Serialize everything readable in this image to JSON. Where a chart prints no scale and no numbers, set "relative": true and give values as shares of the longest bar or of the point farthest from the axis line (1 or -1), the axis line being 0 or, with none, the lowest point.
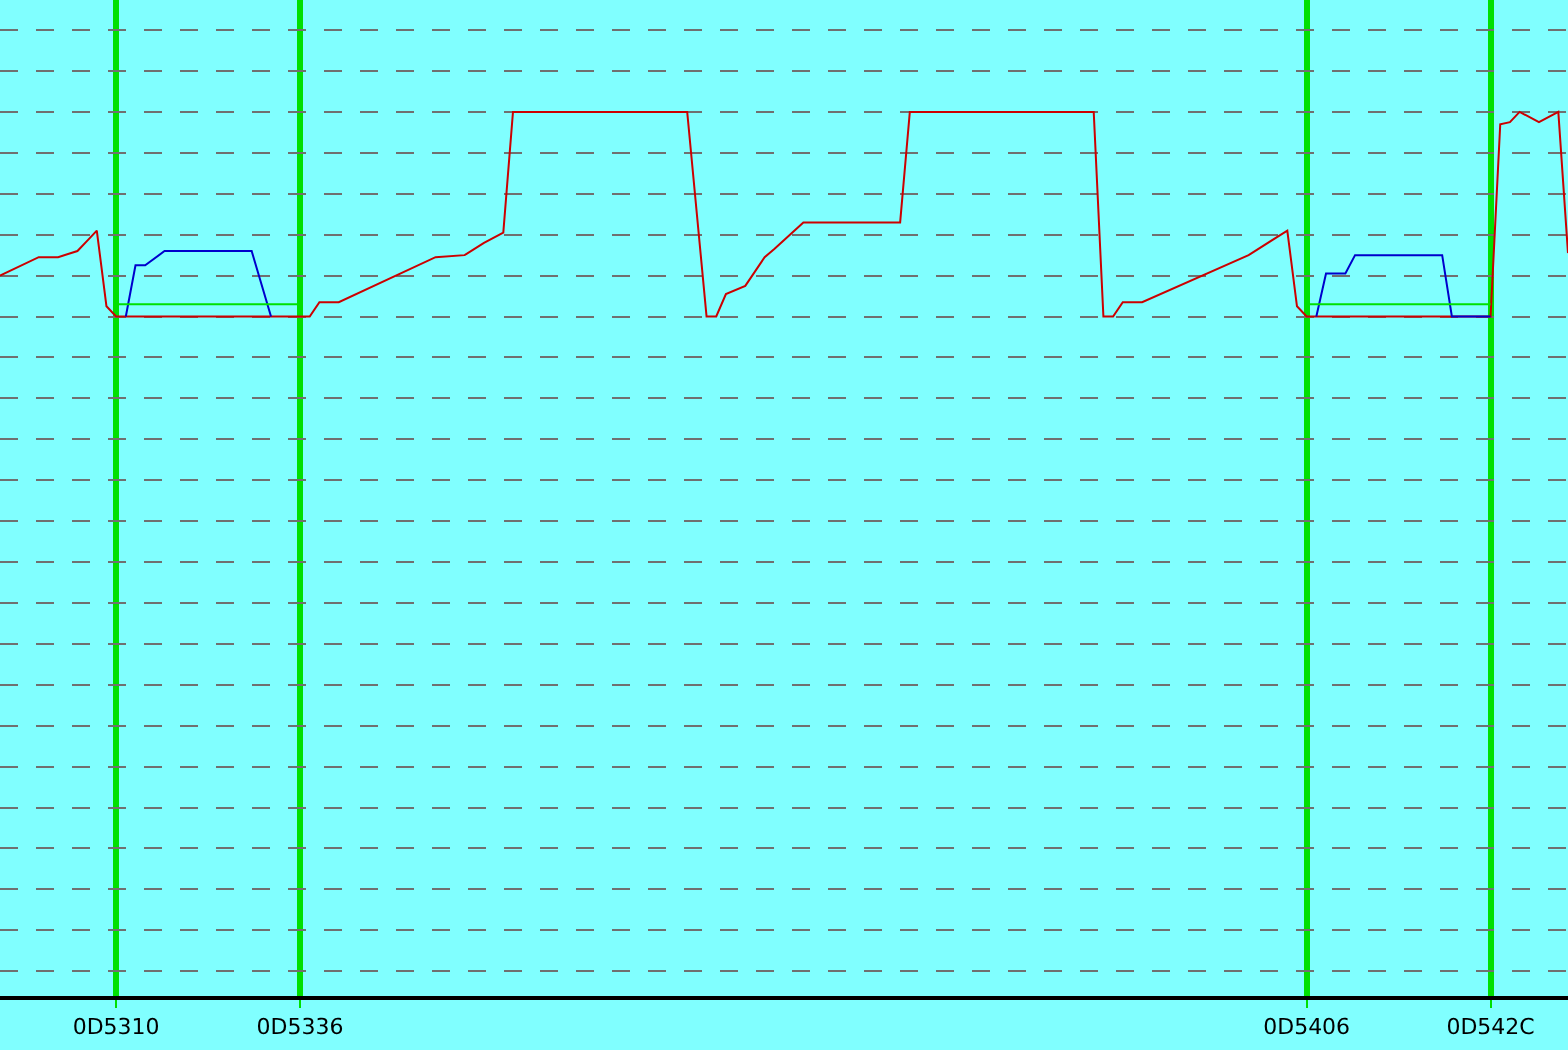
{
  "chart_data": {
    "type": "line",
    "relative": true,
    "categories": [
      null,
      null,
      null,
      null,
      null,
      null,
      null,
      null,
      null,
      null,
      null,
      null,
      "0D5310",
      null,
      null,
      null,
      null,
      null,
      null,
      null,
      null,
      null,
      null,
      null,
      null,
      null,
      null,
      null,
      null,
      null,
      null,
      "0D5336",
      null,
      null,
      null,
      null,
      null,
      null,
      null,
      null,
      null,
      null,
      null,
      null,
      null,
      null,
      null,
      null,
      null,
      null,
      null,
      null,
      null,
      null,
      null,
      null,
      null,
      null,
      null,
      null,
      null,
      null,
      null,
      null,
      null,
      null,
      null,
      null,
      null,
      null,
      null,
      null,
      null,
      null,
      null,
      null,
      null,
      null,
      null,
      null,
      null,
      null,
      null,
      null,
      null,
      null,
      null,
      null,
      null,
      null,
      null,
      null,
      null,
      null,
      null,
      null,
      null,
      null,
      null,
      null,
      null,
      null,
      null,
      null,
      null,
      null,
      null,
      null,
      null,
      null,
      null,
      null,
      null,
      null,
      null,
      null,
      null,
      null,
      null,
      null,
      null,
      null,
      null,
      null,
      null,
      null,
      null,
      null,
      null,
      null,
      null,
      null,
      null,
      null,
      null,
      "0D5406",
      null,
      null,
      null,
      null,
      null,
      null,
      null,
      null,
      null,
      null,
      null,
      null,
      null,
      null,
      null,
      null,
      null,
      null,
      "0D542C",
      null,
      null,
      null,
      null,
      null,
      null,
      null,
      null
    ],
    "series": [
      {
        "color": "#cc0000",
        "values": [
          0.2,
          null,
          null,
          null,
          0.29,
          null,
          0.29,
          null,
          0.32,
          0.37,
          0.42,
          0.05,
          0,
          null,
          null,
          null,
          null,
          null,
          null,
          null,
          null,
          null,
          null,
          null,
          null,
          null,
          null,
          null,
          null,
          null,
          null,
          null,
          0,
          0.07,
          null,
          0.07,
          null,
          null,
          null,
          null,
          null,
          null,
          null,
          null,
          null,
          0.29,
          null,
          null,
          0.3,
          null,
          0.36,
          null,
          0.41,
          1,
          null,
          null,
          null,
          null,
          null,
          null,
          null,
          null,
          null,
          null,
          null,
          null,
          null,
          null,
          null,
          null,
          null,
          1,
          null,
          0,
          0,
          0.11,
          null,
          0.15,
          null,
          0.29,
          0.33,
          null,
          null,
          0.46,
          null,
          null,
          null,
          null,
          null,
          0.46,
          null,
          null,
          null,
          0.46,
          1,
          null,
          null,
          null,
          null,
          null,
          null,
          null,
          null,
          null,
          null,
          null,
          null,
          null,
          null,
          null,
          null,
          null,
          null,
          1,
          0,
          0,
          0.07,
          null,
          0.07,
          null,
          null,
          null,
          null,
          null,
          null,
          null,
          null,
          null,
          null,
          0.3,
          null,
          null,
          null,
          0.42,
          0.05,
          0,
          null,
          null,
          null,
          null,
          null,
          null,
          null,
          null,
          null,
          null,
          null,
          null,
          null,
          null,
          null,
          null,
          null,
          null,
          0,
          0.94,
          0.95,
          1,
          null,
          0.95,
          null,
          1,
          0.31
        ]
      },
      {
        "color": "#0000cc",
        "values": [
          null,
          null,
          null,
          null,
          null,
          null,
          null,
          null,
          null,
          null,
          null,
          null,
          null,
          0,
          0.25,
          0.25,
          null,
          0.32,
          null,
          null,
          null,
          null,
          null,
          null,
          null,
          null,
          0.32,
          null,
          0,
          null,
          null,
          null,
          null,
          null,
          null,
          null,
          null,
          null,
          null,
          null,
          null,
          null,
          null,
          null,
          null,
          null,
          null,
          null,
          null,
          null,
          null,
          null,
          null,
          null,
          null,
          null,
          null,
          null,
          null,
          null,
          null,
          null,
          null,
          null,
          null,
          null,
          null,
          null,
          null,
          null,
          null,
          null,
          null,
          null,
          null,
          null,
          null,
          null,
          null,
          null,
          null,
          null,
          null,
          null,
          null,
          null,
          null,
          null,
          null,
          null,
          null,
          null,
          null,
          null,
          null,
          null,
          null,
          null,
          null,
          null,
          null,
          null,
          null,
          null,
          null,
          null,
          null,
          null,
          null,
          null,
          null,
          null,
          null,
          null,
          null,
          null,
          null,
          null,
          null,
          null,
          null,
          null,
          null,
          null,
          null,
          null,
          null,
          null,
          null,
          null,
          null,
          null,
          null,
          null,
          null,
          null,
          null,
          null,
          null,
          null,
          null,
          null,
          null,
          null,
          null,
          null,
          null,
          null,
          null,
          null,
          null,
          null,
          null,
          null,
          null,
          null,
          null,
          null,
          null,
          null,
          null,
          null,
          null
        ]
      },
      {
        "color": "#0000cc",
        "values": [
          null,
          null,
          null,
          null,
          null,
          null,
          null,
          null,
          null,
          null,
          null,
          null,
          null,
          null,
          null,
          null,
          null,
          null,
          null,
          null,
          null,
          null,
          null,
          null,
          null,
          null,
          null,
          null,
          null,
          null,
          null,
          null,
          null,
          null,
          null,
          null,
          null,
          null,
          null,
          null,
          null,
          null,
          null,
          null,
          null,
          null,
          null,
          null,
          null,
          null,
          null,
          null,
          null,
          null,
          null,
          null,
          null,
          null,
          null,
          null,
          null,
          null,
          null,
          null,
          null,
          null,
          null,
          null,
          null,
          null,
          null,
          null,
          null,
          null,
          null,
          null,
          null,
          null,
          null,
          null,
          null,
          null,
          null,
          null,
          null,
          null,
          null,
          null,
          null,
          null,
          null,
          null,
          null,
          null,
          null,
          null,
          null,
          null,
          null,
          null,
          null,
          null,
          null,
          null,
          null,
          null,
          null,
          null,
          null,
          null,
          null,
          null,
          null,
          null,
          null,
          null,
          null,
          null,
          null,
          null,
          null,
          null,
          null,
          null,
          null,
          null,
          null,
          null,
          null,
          null,
          null,
          null,
          null,
          null,
          null,
          null,
          0,
          0.21,
          null,
          0.21,
          0.3,
          null,
          null,
          null,
          null,
          null,
          null,
          null,
          null,
          0.3,
          0,
          null,
          null,
          null,
          0,
          null,
          null,
          null,
          null,
          null,
          null,
          null,
          null
        ]
      },
      {
        "color": "#00e000",
        "values": [
          null,
          null,
          null,
          null,
          null,
          null,
          null,
          null,
          null,
          null,
          null,
          null,
          0.06,
          null,
          null,
          null,
          null,
          null,
          null,
          null,
          null,
          null,
          null,
          null,
          null,
          null,
          null,
          null,
          null,
          null,
          null,
          0.06,
          null,
          null,
          null,
          null,
          null,
          null,
          null,
          null,
          null,
          null,
          null,
          null,
          null,
          null,
          null,
          null,
          null,
          null,
          null,
          null,
          null,
          null,
          null,
          null,
          null,
          null,
          null,
          null,
          null,
          null,
          null,
          null,
          null,
          null,
          null,
          null,
          null,
          null,
          null,
          null,
          null,
          null,
          null,
          null,
          null,
          null,
          null,
          null,
          null,
          null,
          null,
          null,
          null,
          null,
          null,
          null,
          null,
          null,
          null,
          null,
          null,
          null,
          null,
          null,
          null,
          null,
          null,
          null,
          null,
          null,
          null,
          null,
          null,
          null,
          null,
          null,
          null,
          null,
          null,
          null,
          null,
          null,
          null,
          null,
          null,
          null,
          null,
          null,
          null,
          null,
          null,
          null,
          null,
          null,
          null,
          null,
          null,
          null,
          null,
          null,
          null,
          null,
          null,
          null,
          null,
          null,
          null,
          null,
          null,
          null,
          null,
          null,
          null,
          null,
          null,
          null,
          null,
          null,
          null,
          null,
          null,
          null,
          null,
          null,
          null,
          null,
          null,
          null,
          null,
          null,
          null
        ]
      },
      {
        "color": "#00e000",
        "values": [
          null,
          null,
          null,
          null,
          null,
          null,
          null,
          null,
          null,
          null,
          null,
          null,
          null,
          null,
          null,
          null,
          null,
          null,
          null,
          null,
          null,
          null,
          null,
          null,
          null,
          null,
          null,
          null,
          null,
          null,
          null,
          null,
          null,
          null,
          null,
          null,
          null,
          null,
          null,
          null,
          null,
          null,
          null,
          null,
          null,
          null,
          null,
          null,
          null,
          null,
          null,
          null,
          null,
          null,
          null,
          null,
          null,
          null,
          null,
          null,
          null,
          null,
          null,
          null,
          null,
          null,
          null,
          null,
          null,
          null,
          null,
          null,
          null,
          null,
          null,
          null,
          null,
          null,
          null,
          null,
          null,
          null,
          null,
          null,
          null,
          null,
          null,
          null,
          null,
          null,
          null,
          null,
          null,
          null,
          null,
          null,
          null,
          null,
          null,
          null,
          null,
          null,
          null,
          null,
          null,
          null,
          null,
          null,
          null,
          null,
          null,
          null,
          null,
          null,
          null,
          null,
          null,
          null,
          null,
          null,
          null,
          null,
          null,
          null,
          null,
          null,
          null,
          null,
          null,
          null,
          null,
          null,
          null,
          null,
          null,
          0.06,
          null,
          null,
          null,
          null,
          null,
          null,
          null,
          null,
          null,
          null,
          null,
          null,
          null,
          null,
          null,
          null,
          null,
          null,
          0.06,
          null,
          null,
          null,
          null,
          null,
          null,
          null,
          null
        ]
      }
    ],
    "grid": true,
    "line_style": "solid",
    "marker": "none"
  }
}
